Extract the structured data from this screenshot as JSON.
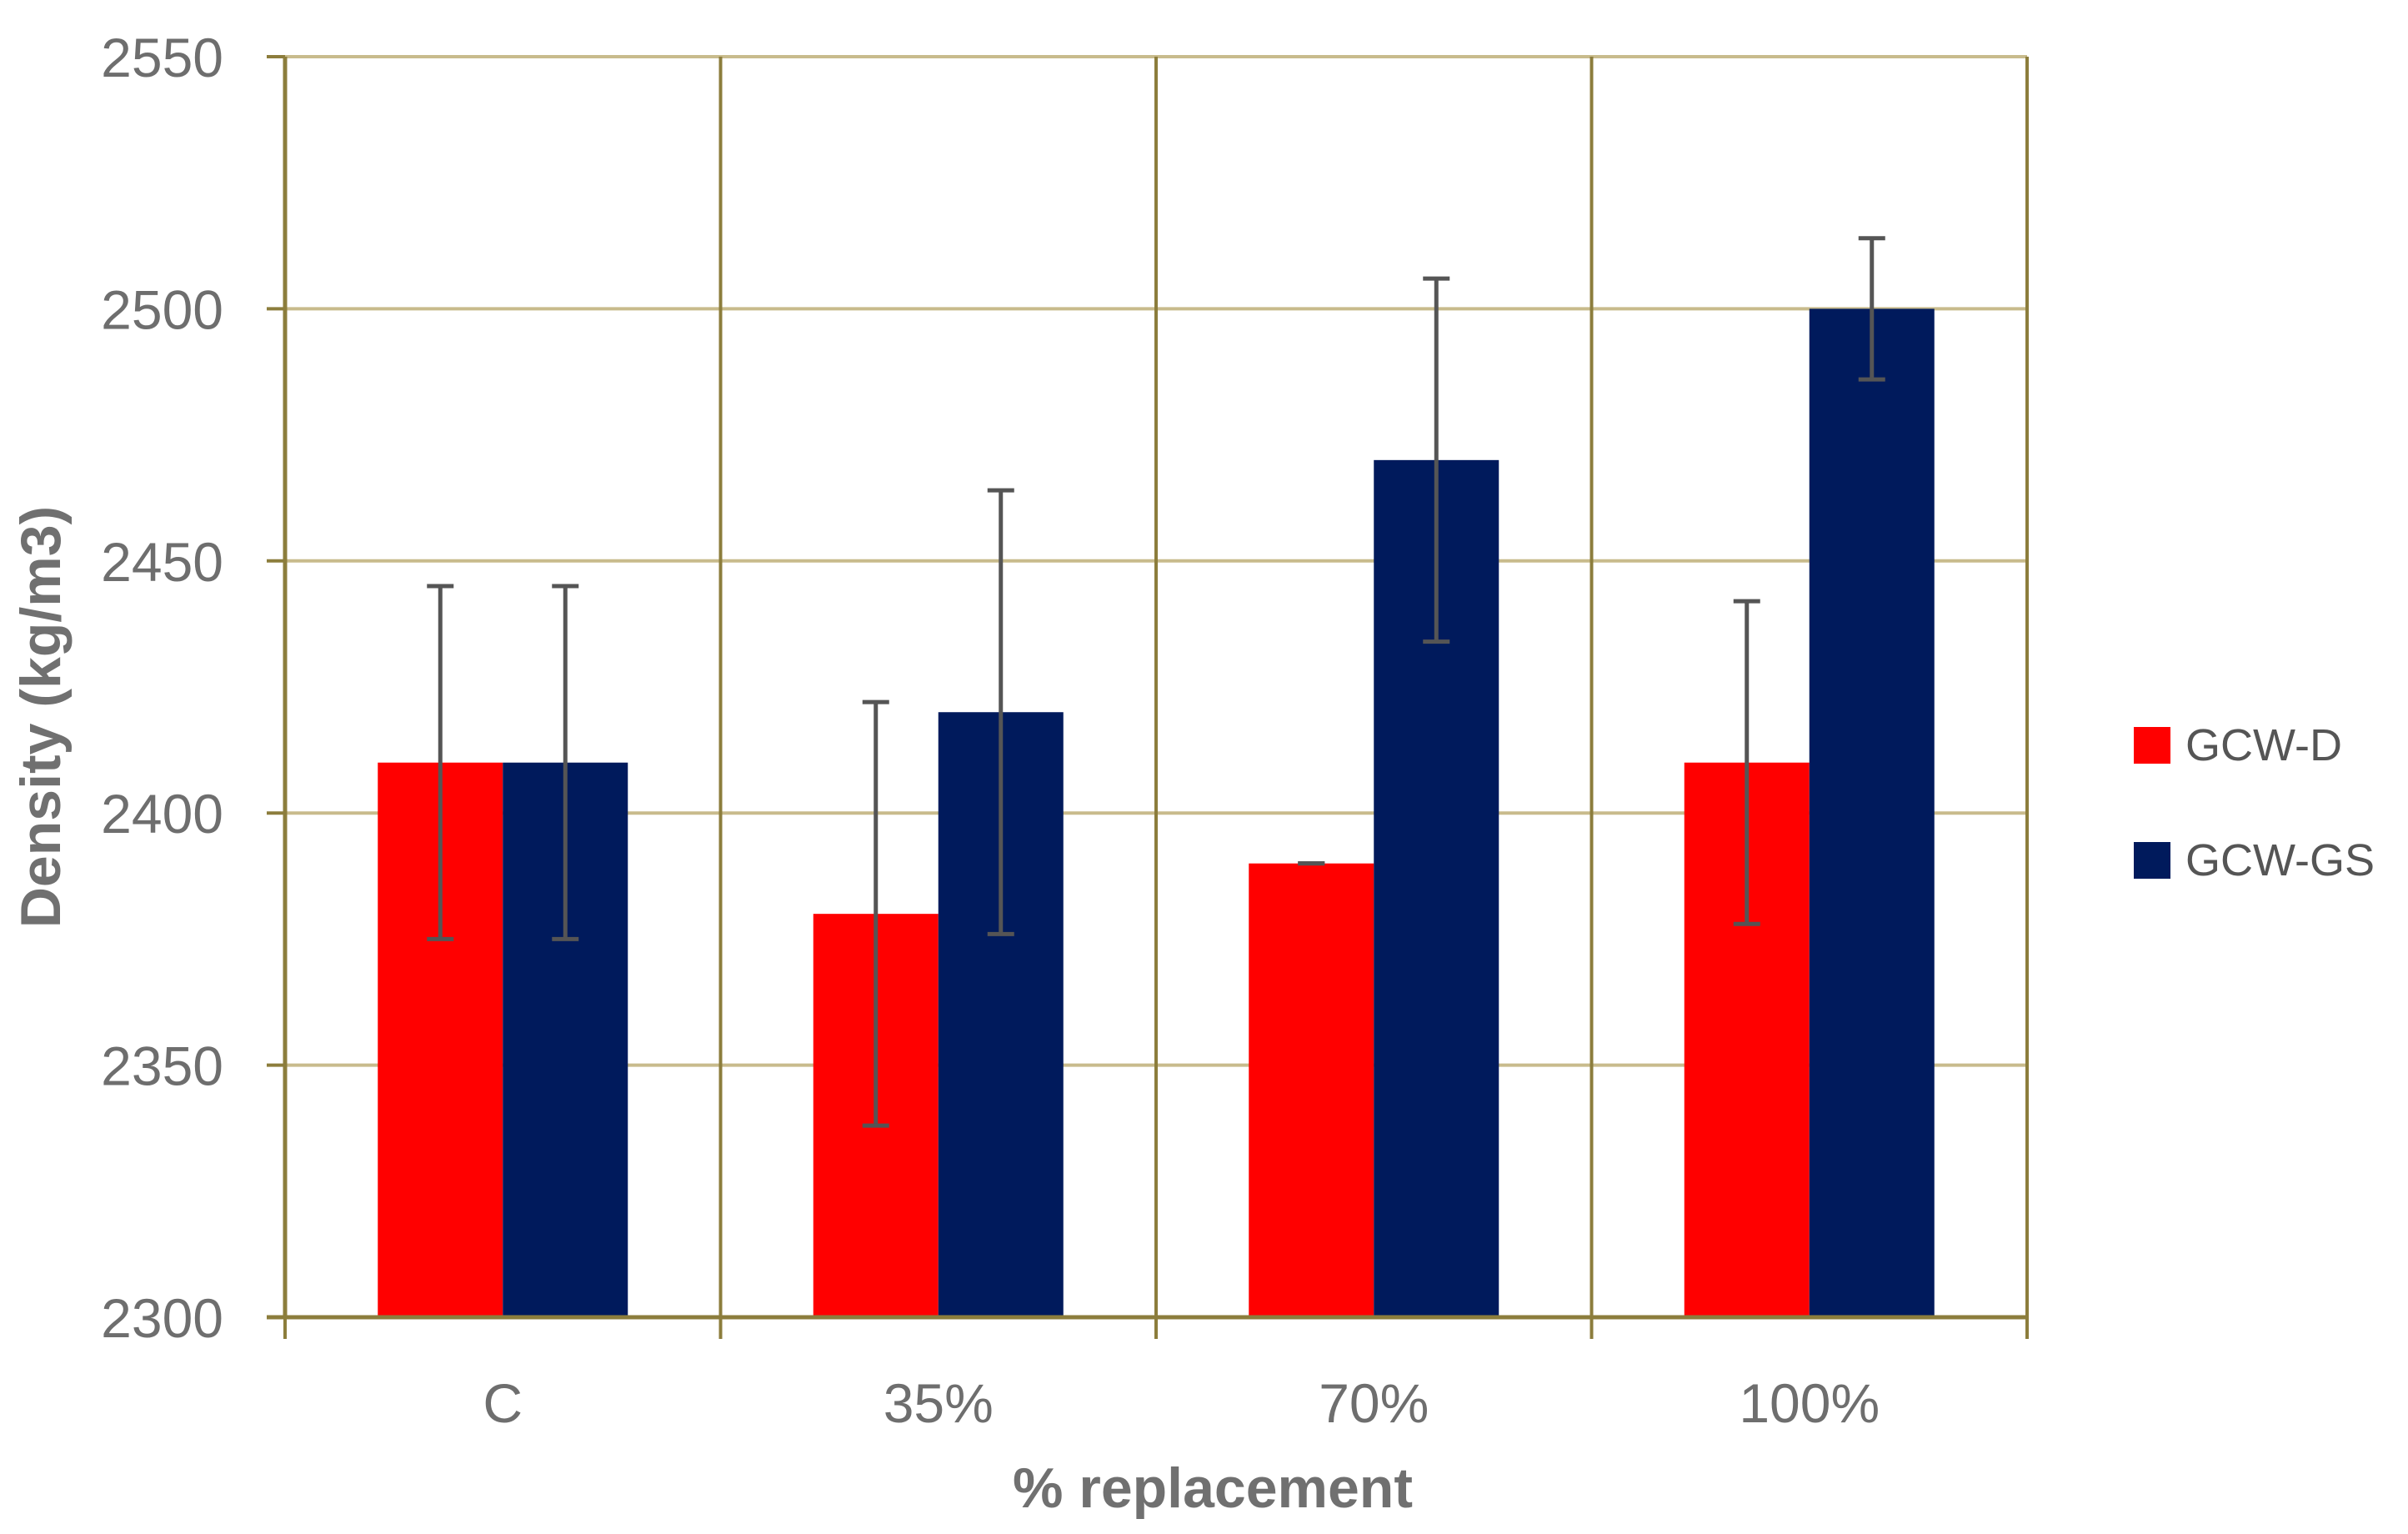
{
  "chart_data": {
    "type": "bar",
    "title": "",
    "xlabel": "% replacement",
    "ylabel": "Density (kg/m3)",
    "categories": [
      "C",
      "35%",
      "70%",
      "100%"
    ],
    "ylim": [
      2300,
      2550
    ],
    "yticks": [
      2300,
      2350,
      2400,
      2450,
      2500,
      2550
    ],
    "grid": true,
    "legend_position": "right",
    "series": [
      {
        "name": "GCW-D",
        "color": "#ff0000",
        "values": [
          2410,
          2380,
          2390,
          2410
        ],
        "error": [
          35,
          42,
          0,
          32
        ]
      },
      {
        "name": "GCW-GS",
        "color": "#001a5c",
        "values": [
          2410,
          2420,
          2470,
          2500
        ],
        "error": [
          35,
          44,
          36,
          14
        ]
      }
    ],
    "colors": {
      "grid": "#c8bb8c",
      "axis": "#8c7d3c",
      "tick_text": "#6e6e6e",
      "label_text": "#707070",
      "error_bar": "#555555"
    }
  }
}
